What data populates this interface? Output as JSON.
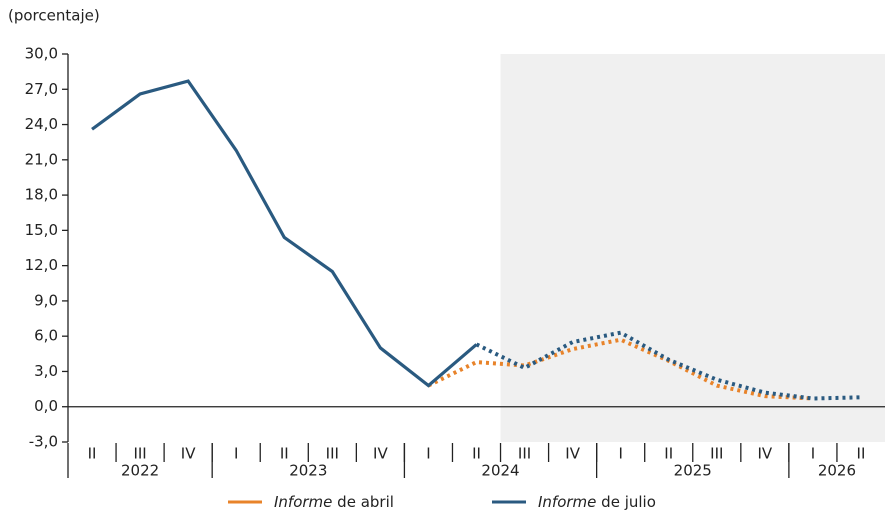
{
  "chart_data": {
    "type": "line",
    "y_label": "(porcentaje)",
    "categories": [
      "II",
      "III",
      "IV",
      "I",
      "II",
      "III",
      "IV",
      "I",
      "II",
      "III",
      "IV",
      "I",
      "II",
      "III",
      "IV",
      "I",
      "II"
    ],
    "years": [
      {
        "label": "2022",
        "span": 3
      },
      {
        "label": "2023",
        "span": 4
      },
      {
        "label": "2024",
        "span": 4
      },
      {
        "label": "2025",
        "span": 4
      },
      {
        "label": "2026",
        "span": 2
      }
    ],
    "series": [
      {
        "name": "Informe de abril",
        "color": "#e8832a",
        "dashed_from": 0,
        "values": [
          null,
          null,
          null,
          null,
          null,
          null,
          null,
          1.8,
          3.8,
          3.5,
          4.9,
          5.7,
          3.9,
          1.8,
          0.9,
          0.7,
          null
        ]
      },
      {
        "name": "Informe de julio",
        "color": "#2a5a80",
        "dashed_from": 8,
        "values": [
          23.6,
          26.6,
          27.7,
          21.8,
          14.4,
          11.5,
          5.0,
          1.8,
          5.3,
          3.3,
          5.5,
          6.3,
          4.0,
          2.3,
          1.2,
          0.7,
          0.8
        ]
      }
    ],
    "shade_from": 9,
    "ylim": [
      -3,
      30
    ],
    "yticks": [
      {
        "value": -3,
        "label": "-3,0"
      },
      {
        "value": 0,
        "label": "0,0"
      },
      {
        "value": 3,
        "label": "3,0"
      },
      {
        "value": 6,
        "label": "6,0"
      },
      {
        "value": 9,
        "label": "9,0"
      },
      {
        "value": 12,
        "label": "12,0"
      },
      {
        "value": 15,
        "label": "15,0"
      },
      {
        "value": 18,
        "label": "18,0"
      },
      {
        "value": 21,
        "label": "21,0"
      },
      {
        "value": 24,
        "label": "24,0"
      },
      {
        "value": 27,
        "label": "27,0"
      },
      {
        "value": 30,
        "label": "30,0"
      }
    ]
  }
}
